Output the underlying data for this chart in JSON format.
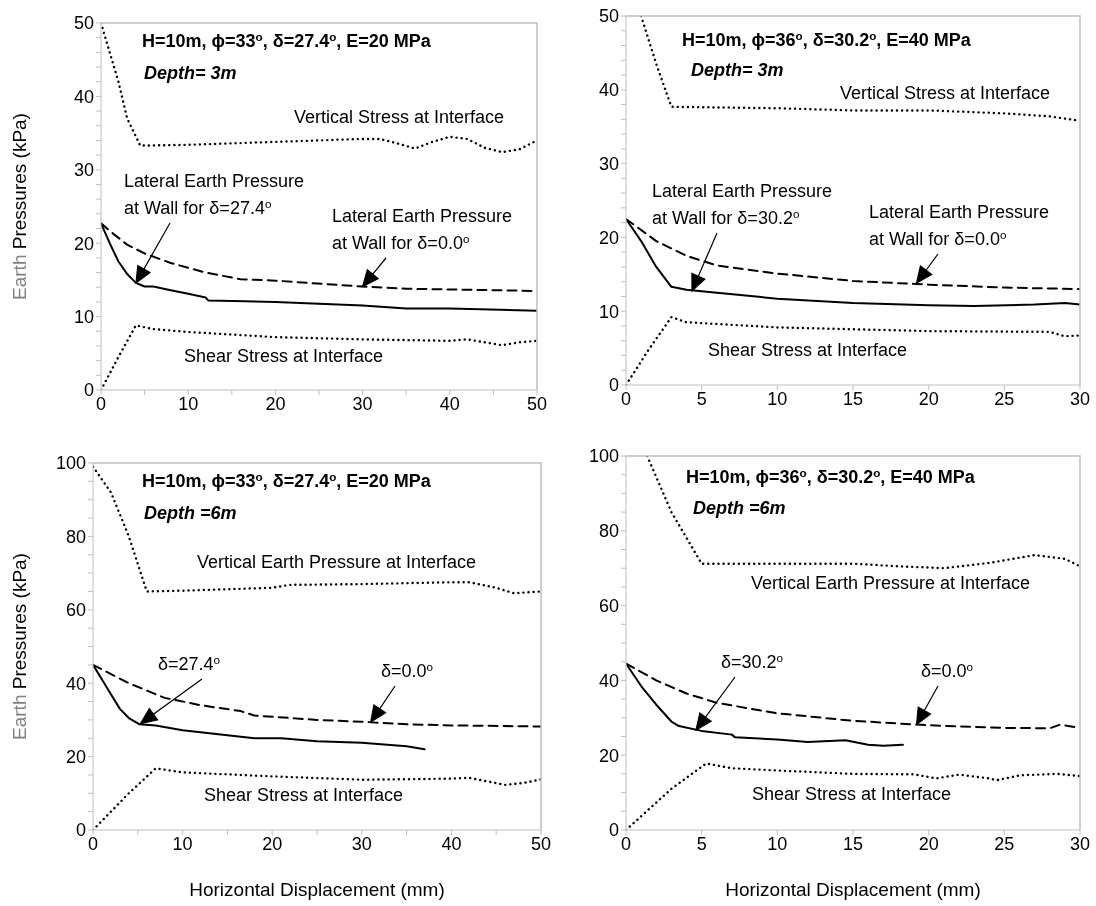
{
  "chart_data": [
    {
      "type": "line",
      "title": "H=10m, ϕ=33$^{o}$, δ=27.4$^{o}$, E=20 MPa",
      "subtitle": "Depth= 3m",
      "ylabel": "Earth Pressures (kPa)",
      "marker": "none",
      "xlim": [
        0,
        50
      ],
      "xticks": [
        0,
        {
          "value": 5,
          "label": null
        },
        10,
        {
          "value": 15,
          "label": null
        },
        20,
        {
          "value": 25,
          "label": null
        },
        30,
        {
          "value": 35,
          "label": null
        },
        40,
        {
          "value": 45,
          "label": null
        },
        50
      ],
      "ylim": [
        0,
        50
      ],
      "yticks": [
        0,
        {
          "value": 2,
          "label": null
        },
        {
          "value": 4,
          "label": null
        },
        {
          "value": 6,
          "label": null
        },
        {
          "value": 8,
          "label": null
        },
        10,
        {
          "value": 12,
          "label": null
        },
        {
          "value": 14,
          "label": null
        },
        {
          "value": 16,
          "label": null
        },
        {
          "value": 18,
          "label": null
        },
        20,
        {
          "value": 22,
          "label": null
        },
        {
          "value": 24,
          "label": null
        },
        {
          "value": 26,
          "label": null
        },
        {
          "value": 28,
          "label": null
        },
        30,
        {
          "value": 32,
          "label": null
        },
        {
          "value": 34,
          "label": null
        },
        {
          "value": 36,
          "label": null
        },
        {
          "value": 38,
          "label": null
        },
        40,
        {
          "value": 42,
          "label": null
        },
        {
          "value": 44,
          "label": null
        },
        {
          "value": 46,
          "label": null
        },
        {
          "value": 48,
          "label": null
        },
        50
      ],
      "series": [
        {
          "color": "#000000",
          "line_style": "dotted",
          "x": [
            0,
            1,
            2,
            3,
            4.5,
            10,
            20,
            30,
            32,
            34,
            36,
            38,
            40,
            42,
            44,
            46,
            48,
            50
          ],
          "values": [
            50,
            46,
            42,
            37,
            33.3,
            33.4,
            33.8,
            34.2,
            34.2,
            33.6,
            32.9,
            33.8,
            34.5,
            34.2,
            33,
            32.4,
            32.8,
            34
          ]
        },
        {
          "color": "#000000",
          "line_style": "solid",
          "x": [
            0,
            1,
            2,
            3,
            4,
            5,
            6,
            8,
            10,
            12,
            12.3,
            20,
            30,
            35,
            40,
            50
          ],
          "values": [
            22.7,
            20,
            17.5,
            15.8,
            14.6,
            14.1,
            14.1,
            13.6,
            13.1,
            12.6,
            12.2,
            12,
            11.5,
            11.1,
            11.1,
            10.8
          ]
        },
        {
          "color": "#000000",
          "line_style": "dashed",
          "x": [
            0,
            1.5,
            3,
            5,
            8,
            12,
            16,
            20,
            30,
            35,
            40,
            49.5
          ],
          "values": [
            22.7,
            21.2,
            19.8,
            18.6,
            17.3,
            16,
            15.1,
            14.9,
            14.1,
            13.8,
            13.7,
            13.5
          ]
        },
        {
          "color": "#000000",
          "line_style": "dotted",
          "x": [
            0,
            2,
            4,
            6,
            10,
            20,
            30,
            40,
            42,
            46,
            48,
            50
          ],
          "values": [
            0,
            4.5,
            8.8,
            8.3,
            7.9,
            7.2,
            6.9,
            6.7,
            6.9,
            6.1,
            6.5,
            6.7
          ]
        }
      ],
      "annotations": [
        "Vertical Stress at Interface",
        "Lateral Earth Pressure\nat Wall for δ=27.4$^{o}$",
        {
          "text": "Lateral Earth Pressure\nat Wall for δ=0.0$^{o}$",
          "x": 30,
          "y": 14.1
        },
        "Shear Stress at Interface"
      ]
    },
    {
      "type": "line",
      "title": "H=10m, ϕ=36$^{o}$, δ=30.2$^{o}$, E=40 MPa",
      "subtitle": "Depth= 3m",
      "marker": "none",
      "xlim": [
        0,
        30
      ],
      "xticks": [
        0,
        5,
        10,
        15,
        20,
        25,
        30
      ],
      "ylim": [
        0,
        50
      ],
      "yticks": [
        0,
        {
          "value": 2,
          "label": null
        },
        {
          "value": 4,
          "label": null
        },
        {
          "value": 6,
          "label": null
        },
        {
          "value": 8,
          "label": null
        },
        10,
        {
          "value": 12,
          "label": null
        },
        {
          "value": 14,
          "label": null
        },
        {
          "value": 16,
          "label": null
        },
        {
          "value": 18,
          "label": null
        },
        20,
        {
          "value": 22,
          "label": null
        },
        {
          "value": 24,
          "label": null
        },
        {
          "value": 26,
          "label": null
        },
        {
          "value": 28,
          "label": null
        },
        30,
        {
          "value": 32,
          "label": null
        },
        {
          "value": 34,
          "label": null
        },
        {
          "value": 36,
          "label": null
        },
        {
          "value": 38,
          "label": null
        },
        40,
        {
          "value": 42,
          "label": null
        },
        {
          "value": 44,
          "label": null
        },
        {
          "value": 46,
          "label": null
        },
        {
          "value": 48,
          "label": null
        },
        50
      ],
      "series": [
        {
          "color": "#000000",
          "line_style": "dotted",
          "x": [
            1,
            2,
            3,
            10,
            15,
            20,
            25,
            28,
            30
          ],
          "values": [
            50,
            43.5,
            37.7,
            37.5,
            37.2,
            37.2,
            36.8,
            36.4,
            35.8
          ]
        },
        {
          "color": "#000000",
          "line_style": "solid",
          "x": [
            0,
            1,
            2,
            3,
            4,
            6,
            10,
            15,
            20,
            23,
            27,
            29,
            30
          ],
          "values": [
            22.5,
            19.5,
            16,
            13.3,
            12.9,
            12.5,
            11.7,
            11.1,
            10.8,
            10.7,
            10.9,
            11.1,
            10.9
          ]
        },
        {
          "color": "#000000",
          "line_style": "dashed",
          "x": [
            0,
            2,
            4,
            6,
            10,
            15,
            20,
            25,
            30
          ],
          "values": [
            22.5,
            19.5,
            17.5,
            16.2,
            15.1,
            14.1,
            13.6,
            13.2,
            13
          ]
        },
        {
          "color": "#000000",
          "line_style": "dotted",
          "x": [
            0,
            1.5,
            3,
            4,
            10,
            20,
            28,
            29,
            30
          ],
          "values": [
            0,
            4.8,
            9.2,
            8.5,
            7.8,
            7.3,
            7.2,
            6.6,
            6.7
          ]
        }
      ],
      "annotations": [
        "Vertical Stress at Interface",
        "Lateral Earth Pressure\nat Wall for δ=30.2$^{o}$",
        {
          "text": "Lateral Earth Pressure\nat Wall for δ=0.0$^{o}$",
          "x": 19.2,
          "y": 13.8
        },
        "Shear Stress at Interface"
      ]
    },
    {
      "type": "line",
      "title": "H=10m, ϕ=33$^{o}$, δ=27.4$^{o}$, E=20 MPa",
      "subtitle": "Depth =6m",
      "xlabel": "Horizontal Displacement (mm)",
      "ylabel": "Earth Pressures (kPa)",
      "marker": "none",
      "xlim": [
        0,
        50
      ],
      "xticks": [
        0,
        {
          "value": 5,
          "label": null
        },
        10,
        {
          "value": 15,
          "label": null
        },
        20,
        {
          "value": 25,
          "label": null
        },
        30,
        {
          "value": 35,
          "label": null
        },
        40,
        {
          "value": 45,
          "label": null
        },
        50
      ],
      "ylim": [
        0,
        100
      ],
      "yticks": [
        0,
        {
          "value": 5,
          "label": null
        },
        {
          "value": 10,
          "label": null
        },
        {
          "value": 15,
          "label": null
        },
        20,
        {
          "value": 25,
          "label": null
        },
        {
          "value": 30,
          "label": null
        },
        {
          "value": 35,
          "label": null
        },
        40,
        {
          "value": 45,
          "label": null
        },
        {
          "value": 50,
          "label": null
        },
        {
          "value": 55,
          "label": null
        },
        60,
        {
          "value": 65,
          "label": null
        },
        {
          "value": 70,
          "label": null
        },
        {
          "value": 75,
          "label": null
        },
        80,
        {
          "value": 85,
          "label": null
        },
        {
          "value": 90,
          "label": null
        },
        {
          "value": 95,
          "label": null
        },
        100
      ],
      "series": [
        {
          "color": "#000000",
          "line_style": "dotted",
          "x": [
            0,
            2,
            4,
            6,
            10,
            20,
            22,
            30,
            40,
            42,
            45,
            47,
            50
          ],
          "values": [
            99,
            92,
            80,
            65,
            65.2,
            66,
            66.8,
            67,
            67.5,
            67.5,
            66,
            64.5,
            65
          ]
        },
        {
          "color": "#000000",
          "line_style": "solid",
          "x": [
            0,
            1,
            2,
            3,
            4,
            5.2,
            7,
            10,
            15,
            18,
            21,
            25,
            30,
            35,
            37
          ],
          "values": [
            45,
            41,
            37,
            33,
            30.5,
            28.8,
            28.5,
            27.2,
            25.8,
            25,
            25,
            24.2,
            23.8,
            22.8,
            22
          ]
        },
        {
          "color": "#000000",
          "line_style": "dashed",
          "x": [
            0,
            4,
            8,
            12,
            16.5,
            18,
            25,
            30,
            35,
            40,
            50
          ],
          "values": [
            45,
            40,
            36,
            34,
            32.4,
            31.2,
            30,
            29.5,
            28.8,
            28.5,
            28.2
          ]
        },
        {
          "color": "#000000",
          "line_style": "dotted",
          "x": [
            0,
            4,
            7,
            10,
            20,
            30,
            40,
            42,
            46,
            48,
            50
          ],
          "values": [
            0,
            10,
            16.8,
            15.7,
            14.6,
            13.7,
            14,
            14.2,
            12.3,
            12.8,
            13.8
          ]
        }
      ],
      "annotations": [
        "Vertical Earth Pressure at Interface",
        {
          "text": "δ=27.4$^{o}$",
          "x": 5.3,
          "y": 29
        },
        {
          "text": "δ=0.0$^{o}$",
          "x": 31,
          "y": 29.4
        },
        "Shear Stress at Interface"
      ]
    },
    {
      "type": "line",
      "title": "H=10m, ϕ=36$^{o}$, δ=30.2$^{o}$, E=40 MPa",
      "subtitle": "Depth =6m",
      "xlabel": "Horizontal Displacement (mm)",
      "marker": "none",
      "xlim": [
        0,
        30
      ],
      "xticks": [
        0,
        5,
        10,
        15,
        20,
        25,
        30
      ],
      "ylim": [
        0,
        100
      ],
      "yticks": [
        0,
        {
          "value": 5,
          "label": null
        },
        {
          "value": 10,
          "label": null
        },
        {
          "value": 15,
          "label": null
        },
        20,
        {
          "value": 25,
          "label": null
        },
        {
          "value": 30,
          "label": null
        },
        {
          "value": 35,
          "label": null
        },
        40,
        {
          "value": 45,
          "label": null
        },
        {
          "value": 50,
          "label": null
        },
        {
          "value": 55,
          "label": null
        },
        60,
        {
          "value": 65,
          "label": null
        },
        {
          "value": 70,
          "label": null
        },
        {
          "value": 75,
          "label": null
        },
        80,
        {
          "value": 85,
          "label": null
        },
        {
          "value": 90,
          "label": null
        },
        {
          "value": 95,
          "label": null
        },
        100
      ],
      "series": [
        {
          "color": "#000000",
          "line_style": "dotted",
          "x": [
            1.4,
            3,
            5,
            10,
            15,
            18,
            21,
            24,
            27,
            29,
            30
          ],
          "values": [
            100,
            85,
            71.2,
            71.2,
            71.2,
            70.5,
            70,
            71.4,
            73.5,
            72.5,
            70.5
          ]
        },
        {
          "color": "#000000",
          "line_style": "solid",
          "x": [
            0,
            1,
            2,
            3,
            3.5,
            5,
            7,
            7.2,
            10,
            12,
            14.5,
            16,
            17,
            18.3
          ],
          "values": [
            44.5,
            38.5,
            33.5,
            29,
            27.8,
            26.5,
            25.5,
            24.8,
            24.2,
            23.5,
            24,
            22.8,
            22.5,
            22.8
          ]
        },
        {
          "color": "#000000",
          "line_style": "dashed",
          "x": [
            0,
            2,
            4,
            6,
            10,
            15,
            20,
            25,
            28,
            28.7,
            30
          ],
          "values": [
            44.5,
            40,
            36.5,
            34,
            31.2,
            29.2,
            28,
            27.3,
            27.2,
            28.2,
            27.3
          ]
        },
        {
          "color": "#000000",
          "line_style": "dotted",
          "x": [
            0,
            3,
            5.3,
            7,
            10,
            15,
            19,
            20.5,
            22,
            24,
            24.5,
            26,
            28.5,
            30
          ],
          "values": [
            0,
            11,
            17.8,
            16.5,
            15.9,
            15,
            14.9,
            13.8,
            14.8,
            13.8,
            13.3,
            14.6,
            15,
            14.4
          ]
        }
      ],
      "annotations": [
        "Vertical Earth Pressure at Interface",
        "δ=30.2$^{o}$",
        {
          "text": "δ=0.0$^{o}$",
          "x": 19.2,
          "y": 28.2
        },
        "Shear Stress at Interface"
      ]
    }
  ]
}
